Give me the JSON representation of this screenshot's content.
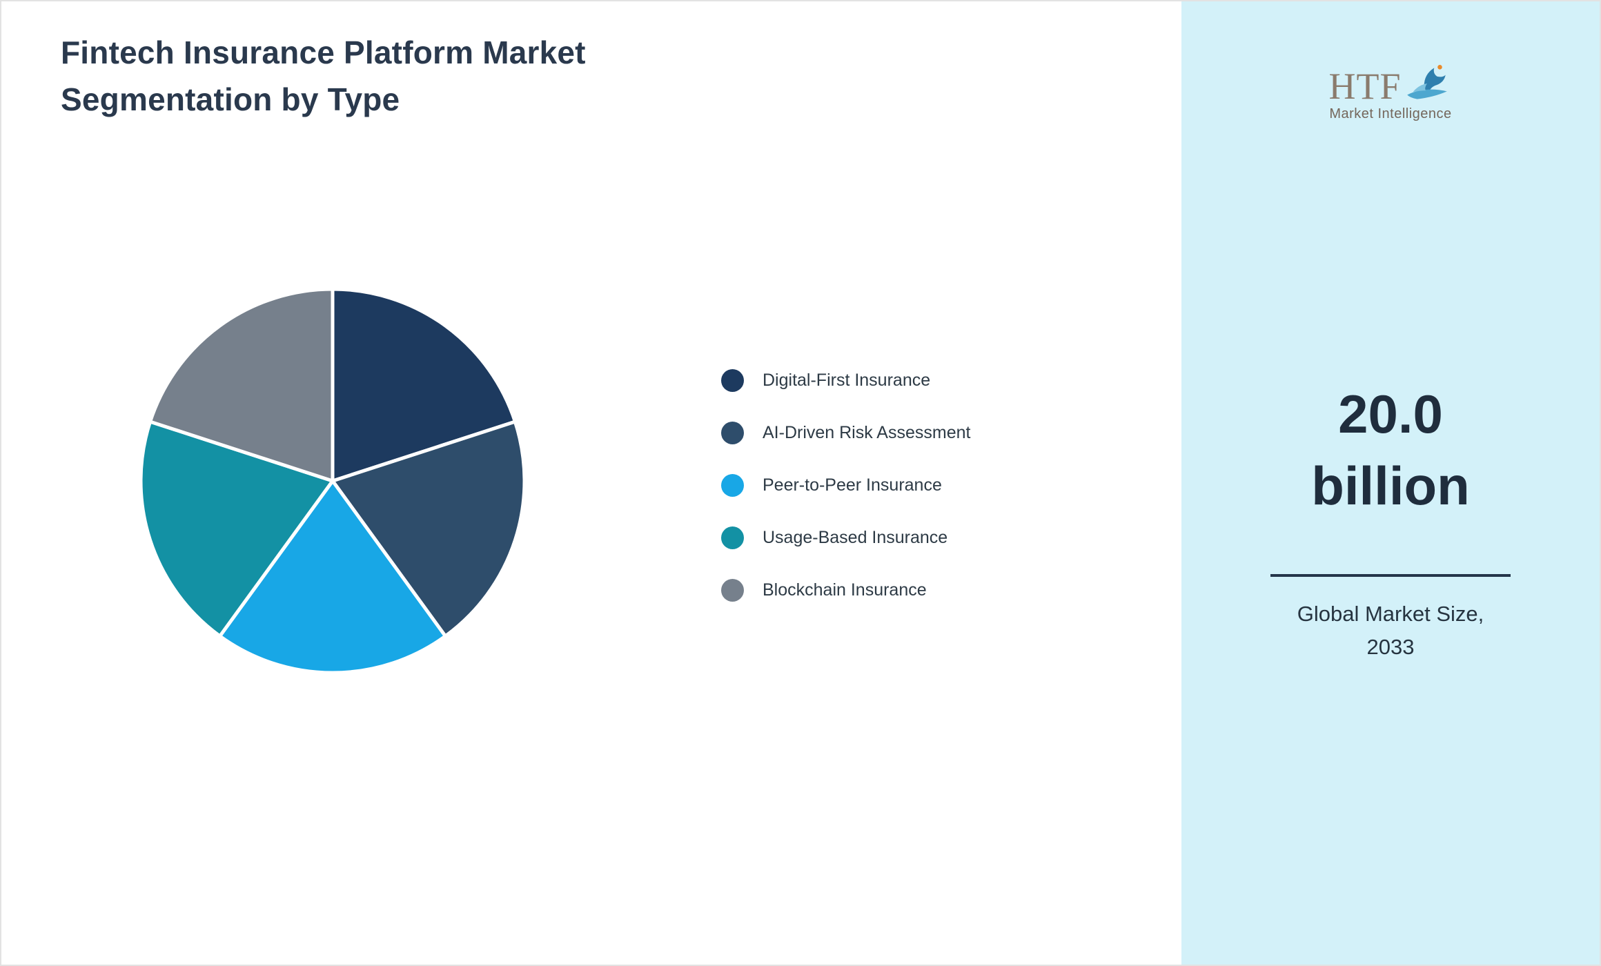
{
  "title": "Fintech Insurance Platform Market Segmentation by Type",
  "chart_data": {
    "type": "pie",
    "title": "Fintech Insurance Platform Market Segmentation by Type",
    "labels": [
      "Digital-First Insurance",
      "AI-Driven Risk Assessment",
      "Peer-to-Peer Insurance",
      "Usage-Based Insurance",
      "Blockchain Insurance"
    ],
    "values": [
      20,
      20,
      20,
      20,
      20
    ],
    "unit": "percent",
    "colors": [
      "#1d3a5f",
      "#2e4d6b",
      "#18a7e6",
      "#1391a4",
      "#76808c"
    ],
    "start_angle_deg": 0,
    "direction": "clockwise",
    "legend_position": "right",
    "slice_gap_color": "#ffffff"
  },
  "sidebar": {
    "background": "#d3f1f9",
    "logo": {
      "text": "HTF",
      "subtext": "Market Intelligence",
      "icon": "dolphin-icon"
    },
    "market_size_value": "20.0",
    "market_size_unit": "billion",
    "caption_line1": "Global Market Size,",
    "caption_line2": "2033"
  }
}
